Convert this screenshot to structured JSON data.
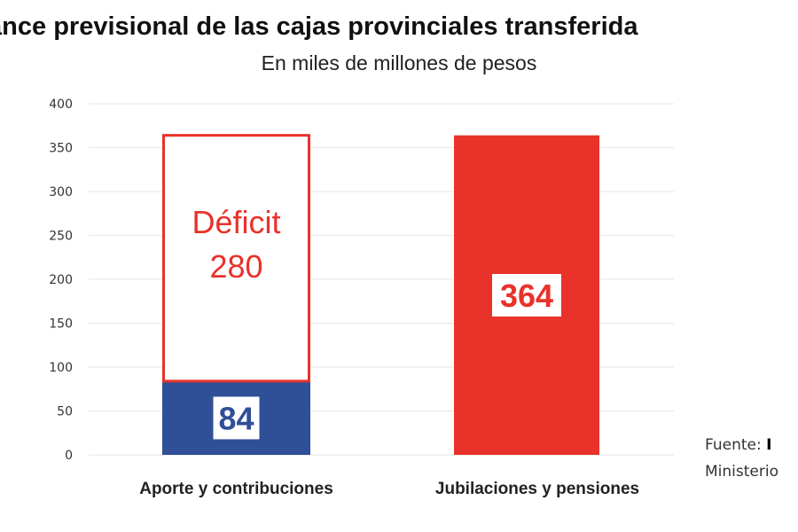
{
  "chart_data": {
    "type": "bar",
    "title": "lance previsional de las cajas provinciales transferida",
    "subtitle": "En miles de millones de pesos",
    "categories": [
      "Aporte y contribuciones",
      "Jubilaciones y pensiones"
    ],
    "series": [
      {
        "values": [
          84,
          364
        ],
        "colors": [
          "#2f4f96",
          "#e8322a"
        ]
      },
      {
        "values": [
          280,
          0
        ],
        "style": "outlined",
        "color": "#e8322a"
      }
    ],
    "data_labels": [
      "84",
      "364"
    ],
    "annotation": {
      "line1": "Déficit",
      "line2": "280"
    },
    "ylim": [
      0,
      400
    ],
    "yticks": [
      0,
      50,
      100,
      150,
      200,
      250,
      300,
      350,
      400
    ],
    "grid": true,
    "xlabel": "",
    "ylabel": ""
  },
  "source": {
    "line1_label": "Fuente: ",
    "line1_value": "I",
    "line2": "Ministerio"
  }
}
